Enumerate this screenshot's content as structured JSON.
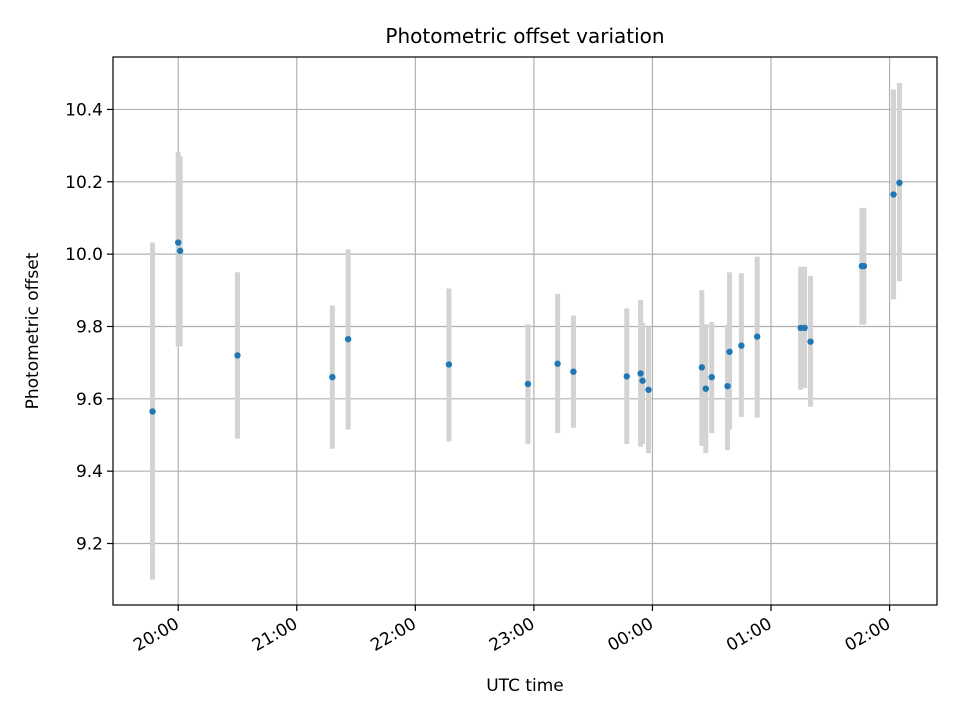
{
  "chart_data": {
    "type": "scatter",
    "title": "Photometric offset variation",
    "xlabel": "UTC time",
    "ylabel": "Photometric offset",
    "grid": true,
    "legend": "none",
    "x_reference_date": "00:00",
    "xlim": [
      "19:27",
      "02:24"
    ],
    "ylim": [
      9.03,
      10.545
    ],
    "x_ticks": [
      "20:00",
      "21:00",
      "22:00",
      "23:00",
      "00:00",
      "01:00",
      "02:00"
    ],
    "x_tick_rotation_deg": 30,
    "y_ticks": [
      "9.2",
      "9.4",
      "9.6",
      "9.8",
      "10.0",
      "10.2",
      "10.4"
    ],
    "colors": {
      "point": "#1f77b4",
      "errorbar": "#d3d3d3"
    },
    "series": [
      {
        "points": [
          {
            "x": "19:47",
            "y": 9.565,
            "err_low": 9.1,
            "err_high": 10.032
          },
          {
            "x": "20:00",
            "y": 10.032,
            "err_low": 9.745,
            "err_high": 10.282
          },
          {
            "x": "20:01",
            "y": 10.009,
            "err_low": 9.745,
            "err_high": 10.27
          },
          {
            "x": "20:30",
            "y": 9.72,
            "err_low": 9.49,
            "err_high": 9.95
          },
          {
            "x": "21:18",
            "y": 9.66,
            "err_low": 9.462,
            "err_high": 9.858
          },
          {
            "x": "21:26",
            "y": 9.765,
            "err_low": 9.515,
            "err_high": 10.013
          },
          {
            "x": "22:17",
            "y": 9.695,
            "err_low": 9.482,
            "err_high": 9.905
          },
          {
            "x": "22:57",
            "y": 9.641,
            "err_low": 9.475,
            "err_high": 9.806
          },
          {
            "x": "23:12",
            "y": 9.697,
            "err_low": 9.505,
            "err_high": 9.89
          },
          {
            "x": "23:20",
            "y": 9.675,
            "err_low": 9.52,
            "err_high": 9.83
          },
          {
            "x": "23:47",
            "y": 9.662,
            "err_low": 9.475,
            "err_high": 9.85
          },
          {
            "x": "23:54",
            "y": 9.67,
            "err_low": 9.468,
            "err_high": 9.873
          },
          {
            "x": "23:55",
            "y": 9.65,
            "err_low": 9.475,
            "err_high": 9.81
          },
          {
            "x": "23:58",
            "y": 9.625,
            "err_low": 9.45,
            "err_high": 9.8
          },
          {
            "x": "00:25",
            "y": 9.687,
            "err_low": 9.47,
            "err_high": 9.9
          },
          {
            "x": "00:27",
            "y": 9.628,
            "err_low": 9.45,
            "err_high": 9.806
          },
          {
            "x": "00:30",
            "y": 9.66,
            "err_low": 9.505,
            "err_high": 9.812
          },
          {
            "x": "00:38",
            "y": 9.635,
            "err_low": 9.458,
            "err_high": 9.805
          },
          {
            "x": "00:39",
            "y": 9.73,
            "err_low": 9.515,
            "err_high": 9.95
          },
          {
            "x": "00:45",
            "y": 9.747,
            "err_low": 9.55,
            "err_high": 9.947
          },
          {
            "x": "00:53",
            "y": 9.772,
            "err_low": 9.548,
            "err_high": 9.993
          },
          {
            "x": "01:15",
            "y": 9.796,
            "err_low": 9.625,
            "err_high": 9.965
          },
          {
            "x": "01:17",
            "y": 9.796,
            "err_low": 9.63,
            "err_high": 9.965
          },
          {
            "x": "01:20",
            "y": 9.758,
            "err_low": 9.578,
            "err_high": 9.94
          },
          {
            "x": "01:46",
            "y": 9.967,
            "err_low": 9.805,
            "err_high": 10.128
          },
          {
            "x": "01:47",
            "y": 9.967,
            "err_low": 9.805,
            "err_high": 10.128
          },
          {
            "x": "02:02",
            "y": 10.165,
            "err_low": 9.875,
            "err_high": 10.455
          },
          {
            "x": "02:05",
            "y": 10.197,
            "err_low": 9.925,
            "err_high": 10.473
          }
        ]
      }
    ]
  }
}
